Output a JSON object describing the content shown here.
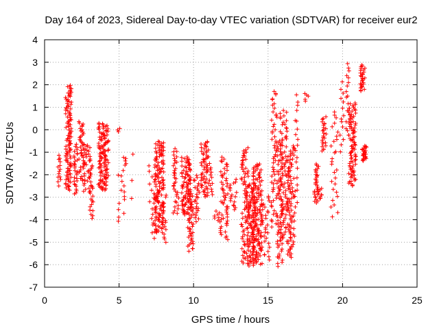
{
  "chart_data": {
    "type": "scatter",
    "title": "Day 164 of 2023, Sidereal Day-to-day VTEC variation (SDTVAR) for receiver eur2",
    "xlabel": "GPS time / hours",
    "ylabel": "SDTVAR / TECUs",
    "xlim": [
      0,
      25
    ],
    "ylim": [
      -7,
      4
    ],
    "xticks": [
      0,
      5,
      10,
      15,
      20,
      25
    ],
    "yticks": [
      -7,
      -6,
      -5,
      -4,
      -3,
      -2,
      -1,
      0,
      1,
      2,
      3,
      4
    ],
    "grid": true,
    "marker": "plus",
    "color": "#ff0000",
    "clusters": [
      {
        "x": [
          0.9,
          1.1
        ],
        "y": [
          -2.5,
          -1.1
        ],
        "n": 14
      },
      {
        "x": [
          1.4,
          1.8
        ],
        "y": [
          -2.7,
          2.0
        ],
        "n": 110
      },
      {
        "x": [
          1.9,
          2.2
        ],
        "y": [
          -2.9,
          -0.6
        ],
        "n": 30
      },
      {
        "x": [
          2.3,
          2.7
        ],
        "y": [
          -2.3,
          0.4
        ],
        "n": 45
      },
      {
        "x": [
          2.6,
          3.2
        ],
        "y": [
          -2.8,
          -0.6
        ],
        "n": 40
      },
      {
        "x": [
          3.0,
          3.3
        ],
        "y": [
          -4.0,
          -2.4
        ],
        "n": 16
      },
      {
        "x": [
          3.6,
          4.3
        ],
        "y": [
          -2.7,
          0.3
        ],
        "n": 120
      },
      {
        "x": [
          4.9,
          5.1
        ],
        "y": [
          -0.1,
          0.1
        ],
        "n": 3
      },
      {
        "x": [
          4.9,
          5.4
        ],
        "y": [
          -4.1,
          -1.7
        ],
        "n": 14
      },
      {
        "x": [
          5.3,
          5.5
        ],
        "y": [
          -1.6,
          -1.2
        ],
        "n": 5
      },
      {
        "x": [
          5.8,
          6.0
        ],
        "y": [
          -3.6,
          -0.9
        ],
        "n": 3
      },
      {
        "x": [
          7.0,
          7.4
        ],
        "y": [
          -4.9,
          -1.6
        ],
        "n": 18
      },
      {
        "x": [
          7.4,
          8.0
        ],
        "y": [
          -4.6,
          -0.5
        ],
        "n": 140
      },
      {
        "x": [
          7.9,
          8.2
        ],
        "y": [
          -5.1,
          -2.8
        ],
        "n": 16
      },
      {
        "x": [
          8.6,
          9.0
        ],
        "y": [
          -3.8,
          -0.8
        ],
        "n": 35
      },
      {
        "x": [
          9.2,
          9.8
        ],
        "y": [
          -3.8,
          -1.2
        ],
        "n": 90
      },
      {
        "x": [
          9.6,
          10.0
        ],
        "y": [
          -5.4,
          -2.8
        ],
        "n": 45
      },
      {
        "x": [
          10.0,
          10.4
        ],
        "y": [
          -4.1,
          -2.0
        ],
        "n": 25
      },
      {
        "x": [
          10.5,
          11.0
        ],
        "y": [
          -3.0,
          -0.5
        ],
        "n": 60
      },
      {
        "x": [
          11.0,
          11.3
        ],
        "y": [
          -2.9,
          -1.5
        ],
        "n": 12
      },
      {
        "x": [
          11.4,
          11.8
        ],
        "y": [
          -4.1,
          -3.6
        ],
        "n": 8
      },
      {
        "x": [
          11.8,
          12.3
        ],
        "y": [
          -4.9,
          -1.2
        ],
        "n": 55
      },
      {
        "x": [
          12.4,
          12.9
        ],
        "y": [
          -3.6,
          -2.2
        ],
        "n": 18
      },
      {
        "x": [
          13.2,
          13.7
        ],
        "y": [
          -6.0,
          -0.8
        ],
        "n": 90
      },
      {
        "x": [
          13.7,
          14.1
        ],
        "y": [
          -6.1,
          -2.4
        ],
        "n": 80
      },
      {
        "x": [
          14.0,
          14.6
        ],
        "y": [
          -6.0,
          -1.5
        ],
        "n": 130
      },
      {
        "x": [
          14.5,
          15.1
        ],
        "y": [
          -5.8,
          -2.9
        ],
        "n": 35
      },
      {
        "x": [
          15.2,
          15.6
        ],
        "y": [
          -4.4,
          1.8
        ],
        "n": 55
      },
      {
        "x": [
          15.6,
          16.0
        ],
        "y": [
          -6.1,
          -0.4
        ],
        "n": 70
      },
      {
        "x": [
          15.8,
          16.3
        ],
        "y": [
          -5.1,
          0.9
        ],
        "n": 80
      },
      {
        "x": [
          16.3,
          16.8
        ],
        "y": [
          -5.7,
          -0.7
        ],
        "n": 90
      },
      {
        "x": [
          16.8,
          17.0
        ],
        "y": [
          -3.5,
          1.7
        ],
        "n": 20
      },
      {
        "x": [
          17.4,
          17.8
        ],
        "y": [
          1.2,
          1.7
        ],
        "n": 5
      },
      {
        "x": [
          18.1,
          18.4
        ],
        "y": [
          -3.3,
          -1.5
        ],
        "n": 30
      },
      {
        "x": [
          18.3,
          18.7
        ],
        "y": [
          -3.1,
          -2.6
        ],
        "n": 10
      },
      {
        "x": [
          18.6,
          18.9
        ],
        "y": [
          -1.0,
          0.6
        ],
        "n": 25
      },
      {
        "x": [
          19.2,
          19.7
        ],
        "y": [
          -3.9,
          0.9
        ],
        "n": 28
      },
      {
        "x": [
          19.8,
          20.1
        ],
        "y": [
          -1.0,
          2.2
        ],
        "n": 14
      },
      {
        "x": [
          20.2,
          20.5
        ],
        "y": [
          -0.2,
          3.1
        ],
        "n": 18
      },
      {
        "x": [
          20.4,
          20.9
        ],
        "y": [
          -2.5,
          1.2
        ],
        "n": 90
      },
      {
        "x": [
          21.2,
          21.5
        ],
        "y": [
          1.7,
          2.9
        ],
        "n": 28
      },
      {
        "x": [
          21.3,
          21.6
        ],
        "y": [
          -1.4,
          -0.7
        ],
        "n": 25
      }
    ]
  }
}
